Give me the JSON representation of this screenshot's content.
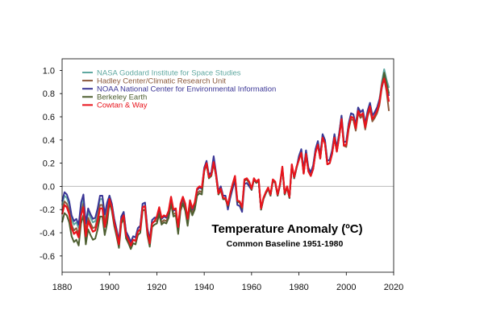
{
  "chart_data": {
    "type": "line",
    "title": "Temperature Anomaly (ºC)",
    "subtitle": "Common Baseline 1951-1980",
    "xlabel": "",
    "ylabel": "",
    "xlim": [
      1880,
      2020
    ],
    "ylim": [
      -0.74,
      1.1
    ],
    "x_ticks": [
      "1880",
      "1900",
      "1920",
      "1940",
      "1960",
      "1980",
      "2000",
      "2020"
    ],
    "y_ticks": [
      "1.0",
      "0.8",
      "0.6",
      "0.4",
      "0.2",
      "0.0",
      "-0.2",
      "-0.4",
      "-0.6"
    ],
    "zero_line": true,
    "grid": false,
    "legend_position": "top-left",
    "x_start": 1880,
    "x_end": 2018,
    "series": [
      {
        "name": "NASA Goddard Institute for Space Studies",
        "color": "#5fa8a0",
        "values": [
          -0.16,
          -0.08,
          -0.1,
          -0.16,
          -0.28,
          -0.33,
          -0.31,
          -0.36,
          -0.17,
          -0.1,
          -0.35,
          -0.22,
          -0.27,
          -0.31,
          -0.3,
          -0.22,
          -0.11,
          -0.11,
          -0.27,
          -0.17,
          -0.08,
          -0.15,
          -0.28,
          -0.37,
          -0.47,
          -0.26,
          -0.22,
          -0.39,
          -0.43,
          -0.48,
          -0.43,
          -0.44,
          -0.36,
          -0.34,
          -0.15,
          -0.14,
          -0.36,
          -0.46,
          -0.29,
          -0.27,
          -0.27,
          -0.19,
          -0.28,
          -0.26,
          -0.27,
          -0.22,
          -0.1,
          -0.21,
          -0.2,
          -0.36,
          -0.16,
          -0.1,
          -0.16,
          -0.29,
          -0.13,
          -0.2,
          -0.15,
          -0.03,
          -0.01,
          -0.02,
          0.13,
          0.19,
          0.07,
          0.09,
          0.2,
          0.09,
          -0.07,
          -0.03,
          -0.11,
          -0.11,
          -0.17,
          -0.07,
          0.01,
          0.08,
          -0.13,
          -0.14,
          -0.19,
          0.05,
          0.06,
          0.03,
          -0.03,
          0.06,
          0.03,
          0.05,
          -0.2,
          -0.11,
          -0.06,
          -0.02,
          -0.08,
          0.05,
          0.03,
          -0.08,
          0.01,
          0.16,
          -0.07,
          -0.01,
          -0.1,
          0.18,
          0.07,
          0.16,
          0.26,
          0.32,
          0.14,
          0.31,
          0.16,
          0.12,
          0.18,
          0.32,
          0.39,
          0.27,
          0.45,
          0.4,
          0.22,
          0.23,
          0.31,
          0.45,
          0.33,
          0.46,
          0.61,
          0.38,
          0.39,
          0.54,
          0.63,
          0.62,
          0.53,
          0.68,
          0.64,
          0.66,
          0.54,
          0.65,
          0.72,
          0.61,
          0.64,
          0.68,
          0.75,
          0.9,
          1.01,
          0.92,
          0.85
        ]
      },
      {
        "name": "Hadley Center/Climatic Research Unit",
        "color": "#8b5a3c",
        "values": [
          -0.21,
          -0.13,
          -0.15,
          -0.21,
          -0.33,
          -0.38,
          -0.36,
          -0.41,
          -0.22,
          -0.15,
          -0.4,
          -0.27,
          -0.32,
          -0.36,
          -0.35,
          -0.27,
          -0.16,
          -0.16,
          -0.32,
          -0.22,
          -0.11,
          -0.18,
          -0.31,
          -0.4,
          -0.5,
          -0.29,
          -0.25,
          -0.42,
          -0.46,
          -0.51,
          -0.46,
          -0.47,
          -0.39,
          -0.37,
          -0.18,
          -0.17,
          -0.39,
          -0.49,
          -0.32,
          -0.3,
          -0.3,
          -0.22,
          -0.31,
          -0.29,
          -0.3,
          -0.25,
          -0.13,
          -0.24,
          -0.23,
          -0.39,
          -0.19,
          -0.13,
          -0.19,
          -0.32,
          -0.16,
          -0.23,
          -0.18,
          -0.06,
          -0.04,
          -0.05,
          0.13,
          0.19,
          0.07,
          0.09,
          0.2,
          0.09,
          -0.07,
          -0.03,
          -0.11,
          -0.11,
          -0.17,
          -0.07,
          0.01,
          0.08,
          -0.13,
          -0.14,
          -0.19,
          0.05,
          0.06,
          0.03,
          -0.03,
          0.06,
          0.03,
          0.05,
          -0.2,
          -0.11,
          -0.06,
          -0.02,
          -0.08,
          0.05,
          0.03,
          -0.08,
          0.01,
          0.16,
          -0.07,
          -0.01,
          -0.1,
          0.18,
          0.07,
          0.16,
          0.23,
          0.29,
          0.11,
          0.28,
          0.13,
          0.09,
          0.15,
          0.29,
          0.36,
          0.24,
          0.42,
          0.37,
          0.19,
          0.2,
          0.28,
          0.42,
          0.3,
          0.43,
          0.58,
          0.35,
          0.34,
          0.49,
          0.58,
          0.57,
          0.48,
          0.63,
          0.59,
          0.61,
          0.49,
          0.6,
          0.67,
          0.56,
          0.59,
          0.63,
          0.7,
          0.85,
          0.93,
          0.82,
          0.65
        ]
      },
      {
        "name": "NOAA National Center for Environmental Information",
        "color": "#3a3596",
        "values": [
          -0.13,
          -0.05,
          -0.07,
          -0.13,
          -0.25,
          -0.3,
          -0.28,
          -0.33,
          -0.14,
          -0.07,
          -0.32,
          -0.19,
          -0.24,
          -0.28,
          -0.27,
          -0.19,
          -0.08,
          -0.08,
          -0.24,
          -0.14,
          -0.08,
          -0.15,
          -0.28,
          -0.37,
          -0.47,
          -0.26,
          -0.22,
          -0.39,
          -0.43,
          -0.48,
          -0.43,
          -0.44,
          -0.36,
          -0.34,
          -0.15,
          -0.14,
          -0.36,
          -0.46,
          -0.29,
          -0.27,
          -0.27,
          -0.19,
          -0.28,
          -0.26,
          -0.27,
          -0.22,
          -0.1,
          -0.21,
          -0.2,
          -0.36,
          -0.16,
          -0.1,
          -0.16,
          -0.29,
          -0.13,
          -0.2,
          -0.15,
          -0.03,
          -0.01,
          -0.02,
          0.16,
          0.22,
          0.1,
          0.12,
          0.26,
          0.12,
          -0.04,
          0.0,
          -0.08,
          -0.08,
          -0.2,
          -0.1,
          -0.02,
          0.05,
          -0.16,
          -0.17,
          -0.22,
          0.02,
          0.03,
          0.0,
          -0.03,
          0.06,
          0.03,
          0.05,
          -0.2,
          -0.11,
          -0.06,
          -0.02,
          -0.08,
          0.05,
          0.03,
          -0.08,
          0.01,
          0.16,
          -0.07,
          -0.01,
          -0.1,
          0.18,
          0.07,
          0.16,
          0.26,
          0.32,
          0.14,
          0.31,
          0.16,
          0.12,
          0.18,
          0.32,
          0.39,
          0.27,
          0.45,
          0.4,
          0.22,
          0.23,
          0.31,
          0.45,
          0.33,
          0.46,
          0.61,
          0.38,
          0.39,
          0.54,
          0.63,
          0.62,
          0.53,
          0.68,
          0.64,
          0.66,
          0.54,
          0.65,
          0.72,
          0.61,
          0.64,
          0.68,
          0.75,
          0.85,
          0.96,
          0.87,
          0.78
        ]
      },
      {
        "name": "Berkeley Earth",
        "color": "#4d5e30",
        "values": [
          -0.31,
          -0.23,
          -0.25,
          -0.31,
          -0.43,
          -0.48,
          -0.46,
          -0.51,
          -0.32,
          -0.25,
          -0.5,
          -0.37,
          -0.42,
          -0.46,
          -0.45,
          -0.37,
          -0.26,
          -0.26,
          -0.42,
          -0.32,
          -0.14,
          -0.21,
          -0.34,
          -0.43,
          -0.53,
          -0.32,
          -0.28,
          -0.45,
          -0.49,
          -0.54,
          -0.49,
          -0.5,
          -0.42,
          -0.4,
          -0.21,
          -0.2,
          -0.42,
          -0.52,
          -0.35,
          -0.33,
          -0.32,
          -0.24,
          -0.33,
          -0.31,
          -0.32,
          -0.27,
          -0.15,
          -0.26,
          -0.25,
          -0.41,
          -0.21,
          -0.15,
          -0.21,
          -0.34,
          -0.18,
          -0.25,
          -0.2,
          -0.08,
          -0.06,
          -0.07,
          0.13,
          0.19,
          0.07,
          0.09,
          0.2,
          0.09,
          -0.07,
          -0.03,
          -0.11,
          -0.11,
          -0.17,
          -0.07,
          0.01,
          0.08,
          -0.13,
          -0.14,
          -0.19,
          0.05,
          0.06,
          0.03,
          -0.03,
          0.06,
          0.03,
          0.05,
          -0.2,
          -0.11,
          -0.06,
          -0.02,
          -0.08,
          0.05,
          0.03,
          -0.08,
          0.01,
          0.16,
          -0.07,
          -0.01,
          -0.1,
          0.18,
          0.07,
          0.16,
          0.23,
          0.29,
          0.11,
          0.28,
          0.13,
          0.09,
          0.15,
          0.29,
          0.36,
          0.24,
          0.42,
          0.37,
          0.19,
          0.2,
          0.28,
          0.42,
          0.3,
          0.43,
          0.58,
          0.35,
          0.36,
          0.51,
          0.6,
          0.59,
          0.5,
          0.65,
          0.61,
          0.63,
          0.51,
          0.62,
          0.69,
          0.58,
          0.61,
          0.65,
          0.72,
          0.87,
          0.98,
          0.89,
          0.8
        ]
      },
      {
        "name": "Cowtan & Way",
        "color": "#e8141c",
        "values": [
          -0.24,
          -0.16,
          -0.18,
          -0.24,
          -0.36,
          -0.41,
          -0.39,
          -0.44,
          -0.25,
          -0.18,
          -0.43,
          -0.3,
          -0.35,
          -0.39,
          -0.38,
          -0.3,
          -0.19,
          -0.19,
          -0.35,
          -0.25,
          -0.11,
          -0.18,
          -0.31,
          -0.4,
          -0.5,
          -0.29,
          -0.25,
          -0.42,
          -0.46,
          -0.51,
          -0.46,
          -0.47,
          -0.39,
          -0.37,
          -0.18,
          -0.17,
          -0.39,
          -0.49,
          -0.32,
          -0.3,
          -0.26,
          -0.18,
          -0.27,
          -0.25,
          -0.26,
          -0.21,
          -0.09,
          -0.2,
          -0.19,
          -0.35,
          -0.15,
          -0.09,
          -0.15,
          -0.28,
          -0.12,
          -0.19,
          -0.14,
          -0.02,
          0.0,
          -0.01,
          0.14,
          0.2,
          0.08,
          0.1,
          0.21,
          0.1,
          -0.06,
          -0.02,
          -0.1,
          -0.1,
          -0.16,
          -0.06,
          0.02,
          0.09,
          -0.12,
          -0.13,
          -0.18,
          0.06,
          0.07,
          0.04,
          -0.02,
          0.07,
          0.04,
          0.06,
          -0.19,
          -0.1,
          -0.05,
          -0.01,
          -0.07,
          0.06,
          0.04,
          -0.07,
          0.02,
          0.17,
          -0.06,
          0.0,
          -0.09,
          0.19,
          0.08,
          0.17,
          0.23,
          0.29,
          0.11,
          0.28,
          0.13,
          0.09,
          0.15,
          0.29,
          0.36,
          0.24,
          0.42,
          0.37,
          0.19,
          0.2,
          0.28,
          0.42,
          0.3,
          0.43,
          0.58,
          0.35,
          0.36,
          0.51,
          0.6,
          0.59,
          0.5,
          0.65,
          0.61,
          0.63,
          0.51,
          0.62,
          0.69,
          0.58,
          0.61,
          0.65,
          0.72,
          0.87,
          0.93,
          0.84,
          0.73
        ]
      }
    ]
  }
}
